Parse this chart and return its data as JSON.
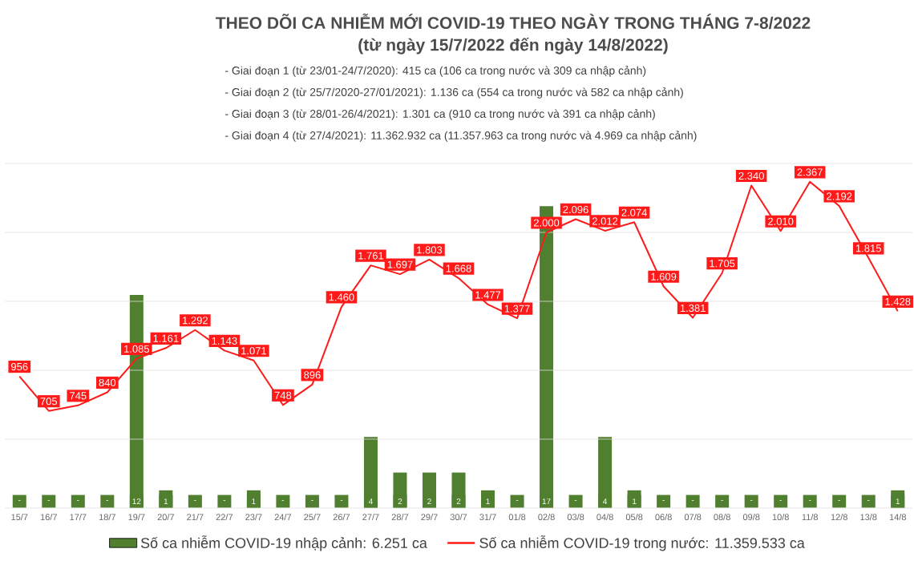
{
  "chart_data": {
    "type": "line",
    "title": "THEO DÕI CA NHIỄM MỚI COVID-19 THEO NGÀY TRONG THÁNG 7-8/2022",
    "subtitle": "(từ ngày 15/7/2022 đến ngày 14/8/2022)",
    "annotations": [
      "- Giai đoạn 1 (từ 23/01-24/7/2020): 415 ca (106 ca trong nước và 309 ca nhập cảnh)",
      "- Giai đoạn 2 (từ 25/7/2020-27/01/2021): 1.136 ca (554 ca trong nước và 582 ca nhập cảnh)",
      "- Giai đoạn 3 (từ 28/01-26/4/2021): 1.301 ca (910 ca trong nước và 391 ca nhập cảnh)",
      "- Giai đoạn 4 (từ 27/4/2021): 11.362.932 ca (11.357.963 ca trong nước và 4.969 ca nhập cảnh)"
    ],
    "categories": [
      "15/7",
      "16/7",
      "17/7",
      "18/7",
      "19/7",
      "20/7",
      "21/7",
      "22/7",
      "23/7",
      "24/7",
      "25/7",
      "26/7",
      "27/7",
      "28/7",
      "29/7",
      "30/7",
      "31/7",
      "01/8",
      "02/8",
      "03/8",
      "04/8",
      "05/8",
      "06/8",
      "07/8",
      "08/8",
      "09/8",
      "10/8",
      "11/8",
      "12/8",
      "13/8",
      "14/8"
    ],
    "series": [
      {
        "name": "Số ca nhiễm COVID-19 nhập cảnh: 6.251 ca",
        "type": "bar",
        "axis": "y2",
        "color": "#4f7f2f",
        "values": [
          0,
          0,
          0,
          0,
          12,
          1,
          0,
          0,
          1,
          0,
          0,
          0,
          4,
          2,
          2,
          2,
          1,
          0,
          17,
          0,
          4,
          1,
          0,
          0,
          0,
          0,
          0,
          0,
          0,
          0,
          1
        ],
        "value_labels": [
          "-",
          "-",
          "-",
          "-",
          "12",
          "1",
          "-",
          "-",
          "1",
          "-",
          "-",
          "-",
          "4",
          "2",
          "2",
          "2",
          "1",
          "-",
          "17",
          "-",
          "4",
          "1",
          "-",
          "-",
          "-",
          "-",
          "-",
          "-",
          "-",
          "-",
          "1"
        ]
      },
      {
        "name": "Số ca nhiễm COVID-19 trong nước: 11.359.533 ca",
        "color": "#ff1a1a",
        "values": [
          956,
          705,
          745,
          840,
          1085,
          1161,
          1292,
          1143,
          1071,
          748,
          896,
          1460,
          1761,
          1697,
          1803,
          1668,
          1477,
          1377,
          2000,
          2096,
          2012,
          2074,
          1609,
          1381,
          1705,
          2340,
          2010,
          2367,
          2192,
          1815,
          1428
        ],
        "value_labels": [
          "956",
          "705",
          "745",
          "840",
          "1.085",
          "1.161",
          "1.292",
          "1.143",
          "1.071",
          "748",
          "896",
          "1.460",
          "1.761",
          "1.697",
          "1.803",
          "1.668",
          "1.477",
          "1.377",
          "2.000",
          "2.096",
          "2.012",
          "2.074",
          "1.609",
          "1.381",
          "1.705",
          "2.340",
          "2.010",
          "2.367",
          "2.192",
          "1.815",
          "1.428"
        ]
      }
    ],
    "ylim": [
      0,
      2500
    ],
    "yticks": [
      {
        "value": 0,
        "label": null
      },
      {
        "value": 500,
        "label": null
      },
      {
        "value": 1000,
        "label": null
      },
      {
        "value": 1500,
        "label": null
      },
      {
        "value": 2000,
        "label": null
      },
      {
        "value": 2500,
        "label": null
      }
    ],
    "y2lim": [
      0,
      19.4
    ],
    "grid": "y",
    "tick_labels": "x",
    "legend": "bottom"
  }
}
